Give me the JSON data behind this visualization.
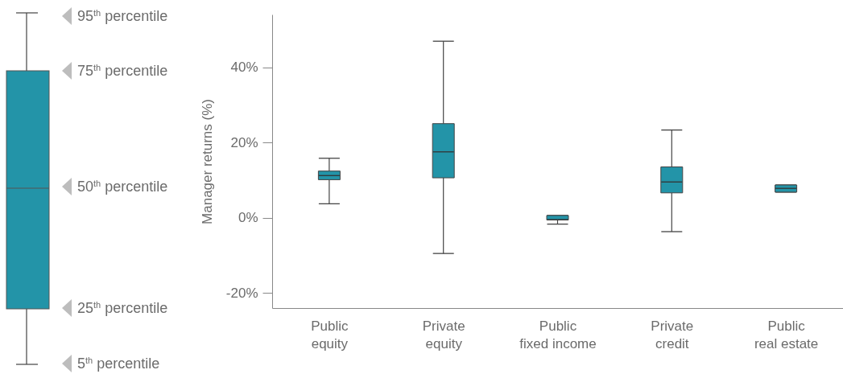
{
  "chart_data": {
    "type": "box",
    "ylabel": "Manager returns (%)",
    "categories": [
      "Public equity",
      "Private equity",
      "Public fixed income",
      "Private credit",
      "Public real estate"
    ],
    "series": [
      {
        "color": "#2394a8",
        "boxes": [
          {
            "low": 3.7,
            "q1": 10.1,
            "median": 11.2,
            "q3": 12.4,
            "high": 15.8
          },
          {
            "low": -9.5,
            "q1": 10.6,
            "median": 17.5,
            "q3": 25,
            "high": 46.9
          },
          {
            "low": -1.7,
            "q1": -0.6,
            "median": -0.5,
            "q3": 0.6,
            "high": 0.6
          },
          {
            "low": -3.7,
            "q1": 6.6,
            "median": 9.5,
            "q3": 13.5,
            "high": 23.3
          },
          {
            "low": 6.8,
            "q1": 6.8,
            "median": 7.8,
            "q3": 8.7,
            "high": 8.7
          }
        ]
      }
    ],
    "ylim": [
      -24,
      54
    ],
    "yticks": [
      {
        "value": -20,
        "label": "-20%"
      },
      {
        "value": 0,
        "label": "0%"
      },
      {
        "value": 20,
        "label": "20%"
      },
      {
        "value": 40,
        "label": "40%"
      }
    ],
    "grid": false,
    "annotations": [
      "95$^{th}$ percentile",
      "75$^{th}$ percentile",
      "50$^{th}$ percentile",
      "25$^{th}$ percentile",
      "5$^{th}$ percentile"
    ]
  }
}
